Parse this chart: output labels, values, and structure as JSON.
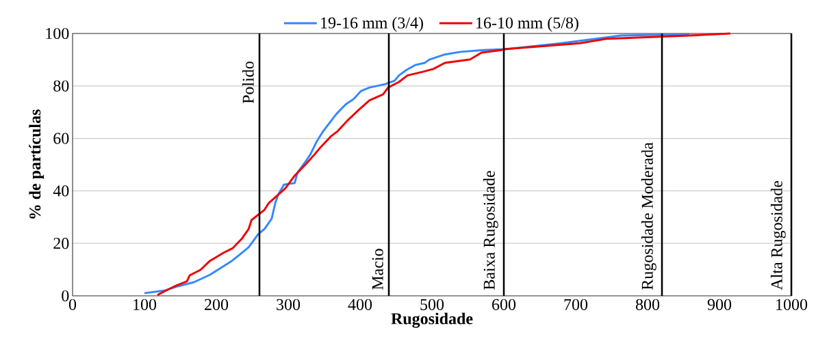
{
  "chart_data": {
    "type": "line",
    "xlabel": "Rugosidade",
    "ylabel": "% de partículas",
    "xlim": [
      0,
      1000
    ],
    "ylim": [
      0,
      100
    ],
    "xticks": [
      0,
      100,
      200,
      300,
      400,
      500,
      600,
      700,
      800,
      900,
      1000
    ],
    "yticks": [
      0,
      20,
      40,
      60,
      80,
      100
    ],
    "grid": "y",
    "legend": "top",
    "marker": "none",
    "line_style": "solid",
    "series": [
      {
        "name": "19-16 mm (3/4)",
        "color": "#3388ff",
        "x": [
          100,
          128,
          144,
          169,
          191,
          220,
          232,
          245,
          258,
          267,
          277,
          282,
          286,
          294,
          309,
          313,
          325,
          331,
          340,
          348,
          356,
          367,
          380,
          391,
          401,
          413,
          435,
          448,
          454,
          464,
          477,
          490,
          496,
          518,
          540,
          572,
          601,
          680,
          763,
          858
        ],
        "values": [
          1,
          2,
          3.4,
          5.2,
          8,
          13,
          15.6,
          18.5,
          23.4,
          25.5,
          29.4,
          35.4,
          38.5,
          42.4,
          43,
          47,
          51.5,
          54,
          59,
          62.5,
          65.4,
          69.3,
          73,
          75,
          78,
          79.4,
          80.7,
          82,
          84,
          86,
          88,
          88.8,
          90,
          92,
          93,
          93.7,
          94,
          96.3,
          99.2,
          99.7
        ]
      },
      {
        "name": "16-10 mm (5/8)",
        "color": "#ee0000",
        "x": [
          118,
          130,
          144,
          159,
          163,
          178,
          191,
          210,
          223,
          235,
          245,
          249,
          267,
          273,
          283,
          296,
          309,
          325,
          337,
          344,
          359,
          369,
          382,
          397,
          413,
          432,
          439,
          454,
          466,
          487,
          502,
          518,
          553,
          569,
          597,
          601,
          706,
          744,
          858,
          915
        ],
        "values": [
          0.3,
          2,
          3.9,
          5.5,
          7.8,
          9.9,
          13.3,
          16.4,
          18.2,
          21.6,
          25.5,
          28.9,
          32.8,
          35.4,
          37.8,
          41,
          45.8,
          50.3,
          54,
          56.3,
          60.7,
          62.8,
          66.7,
          70.6,
          74.5,
          76.8,
          79.4,
          81.5,
          84,
          85.4,
          86.5,
          88.8,
          90.1,
          92.7,
          93.7,
          94,
          96.3,
          98,
          99.2,
          100
        ]
      }
    ],
    "ref_lines": [
      {
        "axis": "x",
        "value": 260,
        "label": "Polido",
        "color": "#000000"
      },
      {
        "axis": "x",
        "value": 440,
        "label": "Macio",
        "color": "#000000"
      },
      {
        "axis": "x",
        "value": 600,
        "label": "Baixa Rugosidade",
        "color": "#000000"
      },
      {
        "axis": "x",
        "value": 820,
        "label": "Rugosidade Moderada",
        "color": "#000000"
      },
      {
        "axis": "x",
        "value": 1000,
        "label": "Alta Rugosidade",
        "color": "#000000"
      }
    ]
  }
}
